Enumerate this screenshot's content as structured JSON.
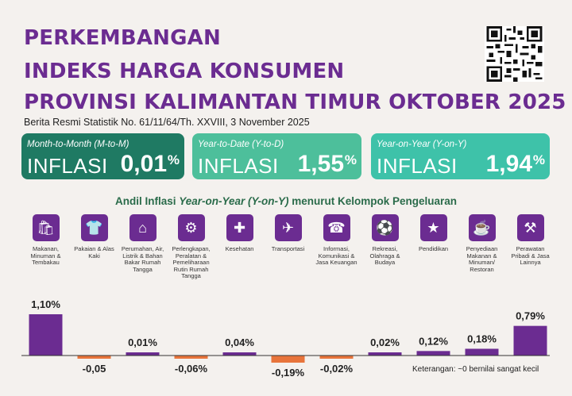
{
  "header": {
    "line1": "PERKEMBANGAN",
    "line2": "INDEKS HARGA KONSUMEN",
    "line3": "PROVINSI KALIMANTAN TIMUR OKTOBER 2025",
    "subtitle": "Berita Resmi Statistik No. 61/11/64/Th. XXVIII, 3 November 2025"
  },
  "cards": [
    {
      "period": "Month-to-Month (M-to-M)",
      "label": "INFLASI",
      "value": "0,01",
      "unit": "%"
    },
    {
      "period": "Year-to-Date (Y-to-D)",
      "label": "INFLASI",
      "value": "1,55",
      "unit": "%"
    },
    {
      "period": "Year-on-Year (Y-on-Y)",
      "label": "INFLASI",
      "value": "1,94",
      "unit": "%"
    }
  ],
  "icons": [
    "food-icon",
    "clothing-icon",
    "house-icon",
    "appliance-icon",
    "health-icon",
    "airplane-icon",
    "phone-icon",
    "sports-icon",
    "graduation-icon",
    "restaurant-icon",
    "tools-icon"
  ],
  "colors": {
    "positive": "#6b2c91",
    "negative": "#e8743b",
    "title": "#6b2c91"
  },
  "chart_data": {
    "type": "bar",
    "title_prefix": "Andil Inflasi ",
    "title_italic": "Year-on-Year (Y-on-Y)",
    "title_suffix": " menurut Kelompok Pengeluaran",
    "categories": [
      "Makanan, Minuman & Tembakau",
      "Pakaian & Alas Kaki",
      "Perumahan, Air, Listrik & Bahan Bakar Rumah Tangga",
      "Perlengkapan, Peralatan & Pemeliharaan Rutin Rumah Tangga",
      "Kesehatan",
      "Transportasi",
      "Informasi, Komunikasi & Jasa Keuangan",
      "Rekreasi, Olahraga & Budaya",
      "Pendidikan",
      "Penyediaan Makanan & Minuman/ Restoran",
      "Perawatan Pribadi & Jasa Lainnya"
    ],
    "values": [
      1.1,
      -0.05,
      0.01,
      -0.06,
      0.04,
      -0.19,
      -0.02,
      0.02,
      0.12,
      0.18,
      0.79
    ],
    "labels": [
      "1,10%",
      "-0,05",
      "0,01%",
      "-0,06%",
      "0,04%",
      "-0,19%",
      "-0,02%",
      "0,02%",
      "0,12%",
      "0,18%",
      "0,79%"
    ],
    "note": "Keterangan: ~0 bernilai sangat kecil"
  }
}
